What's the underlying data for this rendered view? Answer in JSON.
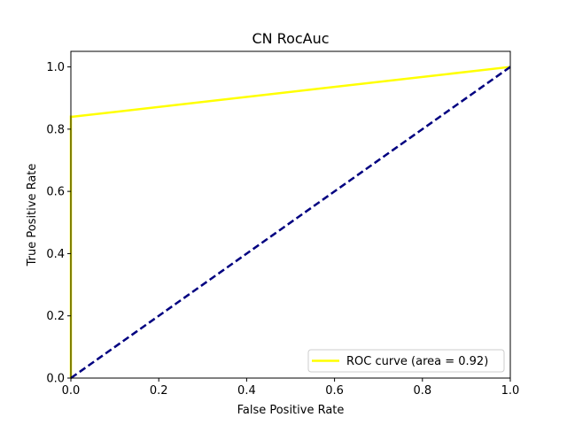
{
  "chart_data": {
    "type": "line",
    "title": "CN RocAuc",
    "xlabel": "False Positive Rate",
    "ylabel": "True Positive Rate",
    "xlim": [
      0.0,
      1.0
    ],
    "ylim": [
      0.0,
      1.05
    ],
    "xticks": [
      0.0,
      0.2,
      0.4,
      0.6,
      0.8,
      1.0
    ],
    "yticks": [
      0.0,
      0.2,
      0.4,
      0.6,
      0.8,
      1.0
    ],
    "xtick_labels": [
      "0.0",
      "0.2",
      "0.4",
      "0.6",
      "0.8",
      "1.0"
    ],
    "ytick_labels": [
      "0.0",
      "0.2",
      "0.4",
      "0.6",
      "0.8",
      "1.0"
    ],
    "grid": false,
    "legend_position": "lower-right",
    "series": [
      {
        "name": "ROC curve (area = 0.92)",
        "color": "#ffff00",
        "style": "solid",
        "x": [
          0.0,
          0.0,
          0.005,
          1.0
        ],
        "y": [
          0.0,
          0.84,
          0.84,
          1.0
        ]
      },
      {
        "color": "#000080",
        "style": "dashed",
        "x": [
          0.0,
          1.0
        ],
        "y": [
          0.0,
          1.0
        ]
      }
    ]
  }
}
